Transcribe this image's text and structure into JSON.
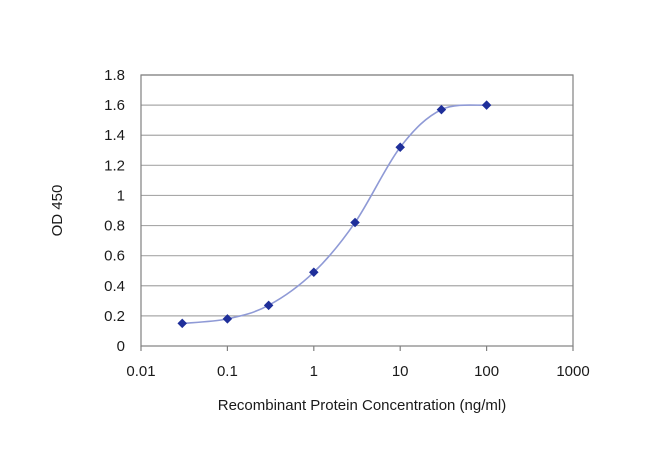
{
  "chart_data": {
    "type": "scatter",
    "title": "",
    "xlabel": "Recombinant Protein Concentration (ng/ml)",
    "ylabel": "OD 450",
    "x_scale": "log",
    "xlim": [
      0.01,
      1000
    ],
    "ylim": [
      0,
      1.8
    ],
    "x_ticks": [
      "0.01",
      "0.1",
      "1",
      "10",
      "100",
      "1000"
    ],
    "y_ticks": [
      "0",
      "0.2",
      "0.4",
      "0.6",
      "0.8",
      "1",
      "1.2",
      "1.4",
      "1.6",
      "1.8"
    ],
    "grid": "horizontal",
    "legend": "none",
    "series": [
      {
        "points": [
          {
            "x": 0.03,
            "y": 0.15
          },
          {
            "x": 0.1,
            "y": 0.18
          },
          {
            "x": 0.3,
            "y": 0.27
          },
          {
            "x": 1,
            "y": 0.49
          },
          {
            "x": 3,
            "y": 0.82
          },
          {
            "x": 10,
            "y": 1.32
          },
          {
            "x": 30,
            "y": 1.57
          },
          {
            "x": 100,
            "y": 1.6
          }
        ],
        "color": "#1f2f9a",
        "line_color": "#8f9ad6"
      }
    ],
    "colors": {
      "grid": "#a8a8a8",
      "axis": "#808080"
    }
  }
}
